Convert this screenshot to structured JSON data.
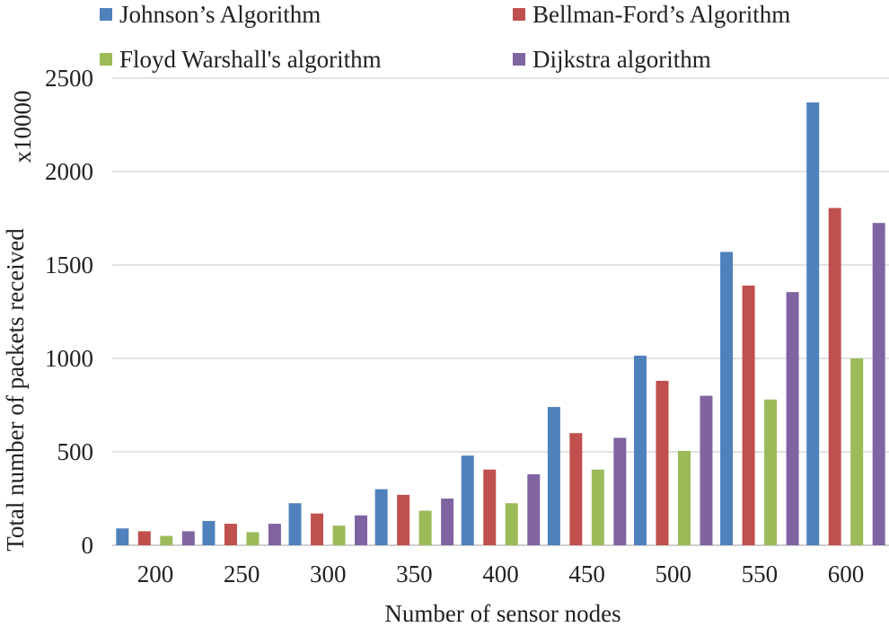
{
  "chart_data": {
    "type": "bar",
    "title": "",
    "xlabel": "Number of sensor nodes",
    "ylabel": "Total number of packets received",
    "yunit": "x10000",
    "categories": [
      "200",
      "250",
      "300",
      "350",
      "400",
      "450",
      "500",
      "550",
      "600"
    ],
    "ylim": [
      0,
      2500
    ],
    "yticks": [
      0,
      500,
      1000,
      1500,
      2000,
      2500
    ],
    "grid": true,
    "legend_position": "top",
    "series": [
      {
        "name": "Johnson’s Algorithm",
        "color": "#4f81bd",
        "values": [
          90,
          130,
          225,
          300,
          480,
          740,
          1015,
          1570,
          2370
        ]
      },
      {
        "name": "Bellman-Ford’s Algorithm",
        "color": "#c0504d",
        "values": [
          75,
          115,
          170,
          270,
          405,
          600,
          880,
          1390,
          1805
        ]
      },
      {
        "name": "Floyd Warshall's algorithm",
        "color": "#9bbb59",
        "values": [
          50,
          70,
          105,
          185,
          225,
          405,
          505,
          780,
          1000
        ]
      },
      {
        "name": "Dijkstra algorithm",
        "color": "#8064a2",
        "values": [
          75,
          115,
          160,
          250,
          380,
          575,
          800,
          1355,
          1725
        ]
      }
    ]
  }
}
